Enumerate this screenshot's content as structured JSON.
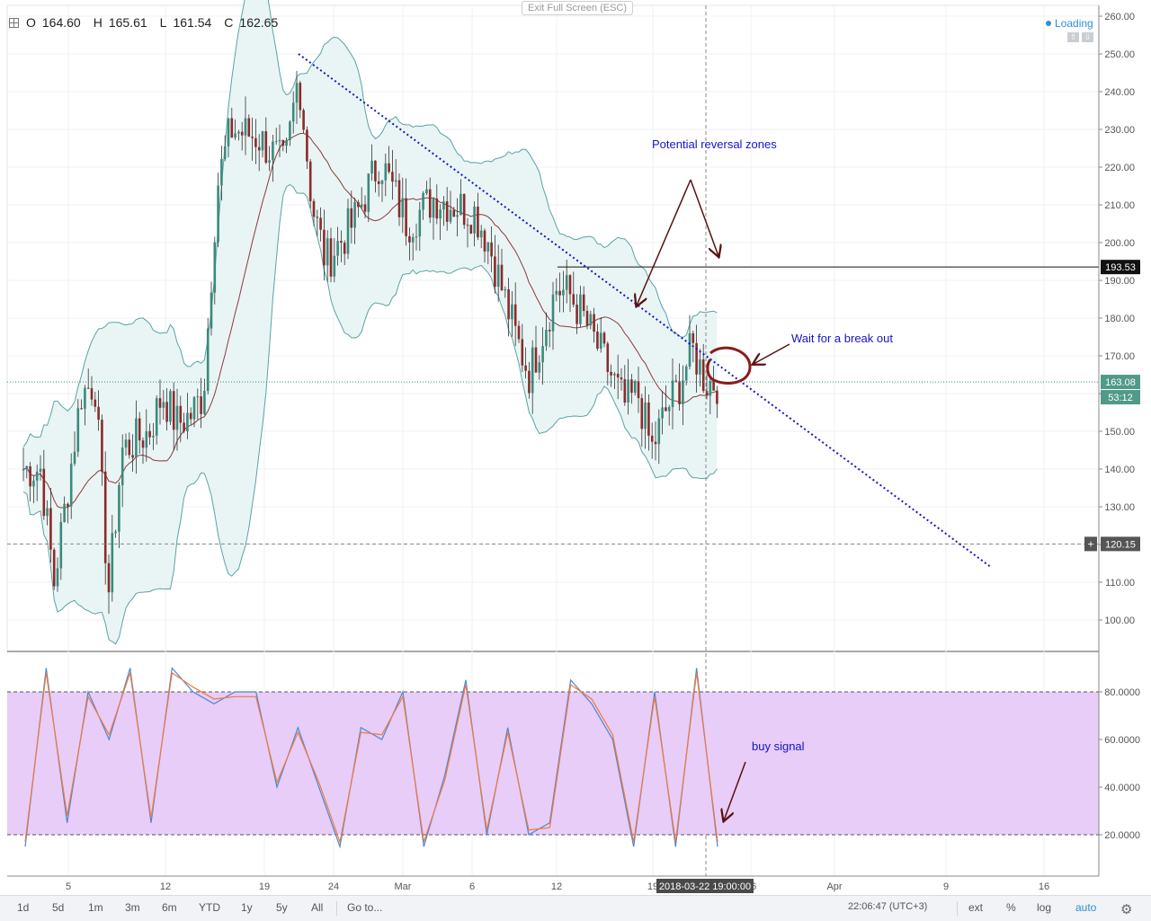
{
  "header": {
    "ohlc": {
      "o_label": "O",
      "o": "164.60",
      "h_label": "H",
      "h": "165.61",
      "l_label": "L",
      "l": "161.54",
      "c_label": "C",
      "c": "162.65"
    },
    "exit_fullscreen": "Exit Full Screen (ESC)",
    "loading": "Loading"
  },
  "toolbar": {
    "ranges": [
      "1d",
      "5d",
      "1m",
      "3m",
      "6m",
      "YTD",
      "1y",
      "5y",
      "All"
    ],
    "goto": "Go to...",
    "clock": "22:06:47 (UTC+3)",
    "options": [
      "ext",
      "%",
      "log",
      "auto"
    ]
  },
  "colors": {
    "bull": "#3a8a7d",
    "bear": "#8c2a2a",
    "band_fill": "#e9f5f4",
    "band_line": "#5aa3a6",
    "midline": "#8b3a3a",
    "trendline": "#1414c8",
    "annotation": "#1414c8",
    "arrow": "#5a1010",
    "stoch_fill": "#e7cdf7",
    "k_line": "#4a86d8",
    "d_line": "#f07a3a",
    "circle": "#8b1a1a"
  },
  "chart_data": [
    {
      "type": "candlestick",
      "title": "",
      "x_tick_labels": [
        "5",
        "12",
        "19",
        "24",
        "Mar",
        "6",
        "12",
        "19",
        "26",
        "Apr",
        "9",
        "16"
      ],
      "y_ticks": [
        100,
        110,
        120,
        130,
        140,
        150,
        160,
        170,
        180,
        190,
        200,
        210,
        220,
        230,
        240,
        250,
        260
      ],
      "ylim": [
        96,
        261
      ],
      "grid": true,
      "price_labels": [
        {
          "value": 193.53,
          "text": "193.53",
          "kind": "horizontal-line"
        },
        {
          "value": 163.08,
          "text": "163.08",
          "kind": "last-price"
        },
        {
          "text": "53:12",
          "kind": "countdown"
        },
        {
          "value": 120.15,
          "text": "120.15",
          "kind": "crosshair"
        }
      ],
      "bollinger_bands": true,
      "horizontal_line": 193.53,
      "trendline": {
        "from": {
          "date": "2018-02-20",
          "y": 250
        },
        "to": {
          "date": "2018-04-12",
          "y": 114
        }
      },
      "crosshair": {
        "time_label": "2018-03-22 19:00:00",
        "price": 120.15
      },
      "annotations": [
        "Potential reversal zones",
        "Wait for a break out"
      ],
      "ohlc_last": {
        "open": 164.6,
        "high": 165.61,
        "low": 161.54,
        "close": 162.65
      },
      "series_anchors": [
        {
          "date": "2018-02-01",
          "close": 140
        },
        {
          "date": "2018-02-02",
          "close": 110
        },
        {
          "date": "2018-02-04",
          "close": 160
        },
        {
          "date": "2018-02-05",
          "close": 163
        },
        {
          "date": "2018-02-06",
          "close": 107
        },
        {
          "date": "2018-02-07",
          "close": 145
        },
        {
          "date": "2018-02-09",
          "close": 150
        },
        {
          "date": "2018-02-10",
          "close": 160
        },
        {
          "date": "2018-02-11",
          "close": 152
        },
        {
          "date": "2018-02-12",
          "close": 154
        },
        {
          "date": "2018-02-13",
          "close": 160
        },
        {
          "date": "2018-02-14",
          "close": 215
        },
        {
          "date": "2018-02-15",
          "close": 230
        },
        {
          "date": "2018-02-17",
          "close": 228
        },
        {
          "date": "2018-02-19",
          "close": 220
        },
        {
          "date": "2018-02-20",
          "close": 245
        },
        {
          "date": "2018-02-21",
          "close": 210
        },
        {
          "date": "2018-02-22",
          "close": 195
        },
        {
          "date": "2018-02-24",
          "close": 205
        },
        {
          "date": "2018-02-26",
          "close": 222
        },
        {
          "date": "2018-02-28",
          "close": 205
        },
        {
          "date": "2018-03-02",
          "close": 212
        },
        {
          "date": "2018-03-05",
          "close": 208
        },
        {
          "date": "2018-03-06",
          "close": 200
        },
        {
          "date": "2018-03-08",
          "close": 175
        },
        {
          "date": "2018-03-09",
          "close": 165
        },
        {
          "date": "2018-03-11",
          "close": 188
        },
        {
          "date": "2018-03-12",
          "close": 186
        },
        {
          "date": "2018-03-13",
          "close": 180
        },
        {
          "date": "2018-03-15",
          "close": 165
        },
        {
          "date": "2018-03-16",
          "close": 157
        },
        {
          "date": "2018-03-17",
          "close": 160
        },
        {
          "date": "2018-03-18",
          "close": 145
        },
        {
          "date": "2018-03-19",
          "close": 155
        },
        {
          "date": "2018-03-20",
          "close": 162
        },
        {
          "date": "2018-03-21",
          "close": 172
        },
        {
          "date": "2018-03-22",
          "close": 163
        }
      ]
    },
    {
      "type": "line",
      "title": "",
      "y_ticks": [
        "20.0000",
        "40.0000",
        "60.0000",
        "80.0000"
      ],
      "ylim": [
        5,
        95
      ],
      "overbought": 80,
      "oversold": 20,
      "annotations": [
        "buy signal"
      ],
      "series": [
        {
          "values": [
            15,
            90,
            25,
            80,
            60,
            90,
            25,
            90,
            80,
            75,
            80,
            80,
            40,
            65,
            40,
            15,
            65,
            60,
            80,
            15,
            45,
            85,
            20,
            65,
            20,
            25,
            85,
            75,
            60,
            15,
            80,
            15,
            90,
            15
          ]
        },
        {
          "values": [
            17,
            88,
            28,
            78,
            62,
            88,
            27,
            88,
            82,
            77,
            78,
            78,
            42,
            63,
            42,
            17,
            63,
            62,
            78,
            17,
            43,
            83,
            22,
            63,
            22,
            23,
            83,
            77,
            62,
            17,
            78,
            17,
            88,
            17
          ]
        }
      ]
    }
  ]
}
